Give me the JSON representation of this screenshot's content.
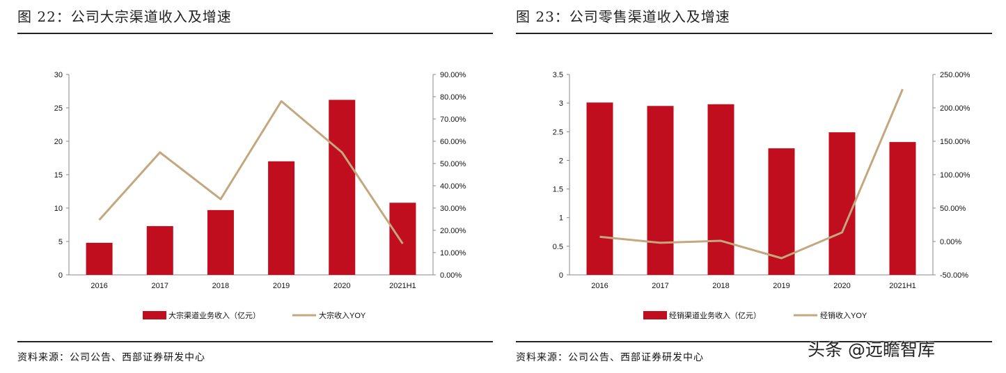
{
  "chart_data": [
    {
      "type": "bar+line",
      "title": "图 22：公司大宗渠道收入及增速",
      "categories": [
        "2016",
        "2017",
        "2018",
        "2019",
        "2020",
        "2021H1"
      ],
      "series": [
        {
          "name": "大宗渠道业务收入（亿元）",
          "type": "bar",
          "axis": "left",
          "values": [
            4.8,
            7.3,
            9.7,
            17.0,
            26.2,
            10.8
          ]
        },
        {
          "name": "大宗收入YOY",
          "type": "line",
          "axis": "right",
          "values": [
            24.7,
            55.0,
            34.0,
            78.0,
            55.0,
            14.0
          ]
        }
      ],
      "left_axis": {
        "ylim": [
          0,
          30
        ],
        "ticks": [
          "0",
          "5",
          "10",
          "15",
          "20",
          "25",
          "30"
        ]
      },
      "right_axis": {
        "ylim": [
          0,
          90
        ],
        "ticks": [
          "0.00%",
          "10.00%",
          "20.00%",
          "30.00%",
          "40.00%",
          "50.00%",
          "60.00%",
          "70.00%",
          "80.00%",
          "90.00%"
        ]
      },
      "legend": "bottom",
      "grid": false,
      "colors": {
        "bar": "#C00E1E",
        "line": "#C3A77F"
      },
      "source": "资料来源：公司公告、西部证券研发中心"
    },
    {
      "type": "bar+line",
      "title": "图 23：公司零售渠道收入及增速",
      "categories": [
        "2016",
        "2017",
        "2018",
        "2019",
        "2020",
        "2021H1"
      ],
      "series": [
        {
          "name": "经销渠道业务收入（亿元）",
          "type": "bar",
          "axis": "left",
          "values": [
            3.01,
            2.95,
            2.98,
            2.21,
            2.49,
            2.32
          ]
        },
        {
          "name": "经销收入YOY",
          "type": "line",
          "axis": "right",
          "values": [
            7,
            -2,
            1,
            -25,
            13.5,
            228
          ]
        }
      ],
      "left_axis": {
        "ylim": [
          0,
          3.5
        ],
        "ticks": [
          "0",
          "0.5",
          "1",
          "1.5",
          "2",
          "2.5",
          "3",
          "3.5"
        ]
      },
      "right_axis": {
        "ylim": [
          -50,
          250
        ],
        "ticks": [
          "-50.00%",
          "0.00%",
          "50.00%",
          "100.00%",
          "150.00%",
          "200.00%",
          "250.00%"
        ]
      },
      "legend": "bottom",
      "grid": false,
      "colors": {
        "bar": "#C00E1E",
        "line": "#C3A77F"
      },
      "source": "资料来源：公司公告、西部证券研发中心"
    }
  ],
  "watermark": "头条 @远瞻智库"
}
